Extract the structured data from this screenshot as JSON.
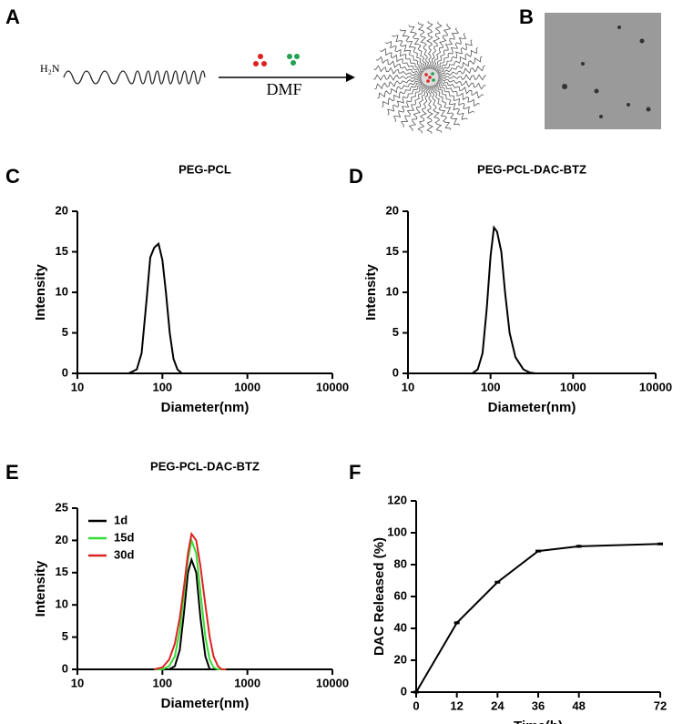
{
  "schematic": {
    "panel": "A",
    "amine": "H₂N",
    "solvent": "DMF"
  },
  "micrograph": {
    "panel": "B"
  },
  "chart_data": [
    {
      "type": "line",
      "panel": "C",
      "title": "PEG-PCL",
      "xlabel": "Diameter(nm)",
      "ylabel": "Intensity",
      "xscale": "log",
      "xlim": [
        10,
        10000
      ],
      "xticks": [
        10,
        100,
        1000,
        10000
      ],
      "ylim": [
        0,
        20
      ],
      "yticks": [
        0,
        5,
        10,
        15,
        20
      ],
      "color": "#000000",
      "x": [
        40,
        50,
        57,
        65,
        72,
        80,
        90,
        100,
        110,
        122,
        135,
        150,
        170
      ],
      "values": [
        0,
        0.5,
        2.5,
        9,
        14.3,
        15.5,
        16,
        14,
        10,
        5,
        1.8,
        0.5,
        0
      ]
    },
    {
      "type": "line",
      "panel": "D",
      "title": "PEG-PCL-DAC-BTZ",
      "xlabel": "Diameter(nm)",
      "ylabel": "Intensity",
      "xscale": "log",
      "xlim": [
        10,
        10000
      ],
      "xticks": [
        10,
        100,
        1000,
        10000
      ],
      "ylim": [
        0,
        20
      ],
      "yticks": [
        0,
        5,
        10,
        15,
        20
      ],
      "color": "#000000",
      "x": [
        60,
        70,
        80,
        90,
        100,
        110,
        120,
        135,
        150,
        170,
        200,
        250,
        300,
        350
      ],
      "values": [
        0,
        0.5,
        2.5,
        8,
        14.5,
        18,
        17.5,
        15,
        10,
        5,
        2,
        0.5,
        0.1,
        0
      ]
    },
    {
      "type": "multiline",
      "panel": "E",
      "title": "PEG-PCL-DAC-BTZ",
      "xlabel": "Diameter(nm)",
      "ylabel": "Intensity",
      "xscale": "log",
      "xlim": [
        10,
        10000
      ],
      "xticks": [
        10,
        100,
        1000,
        10000
      ],
      "ylim": [
        0,
        25
      ],
      "yticks": [
        0,
        5,
        10,
        15,
        20,
        25
      ],
      "legend": "upper left",
      "x": [
        80,
        100,
        120,
        140,
        160,
        180,
        200,
        220,
        250,
        280,
        320,
        360,
        400,
        450,
        500,
        560
      ],
      "series": [
        {
          "name": "1d",
          "color": "#000000",
          "values": [
            0,
            0,
            0,
            0.5,
            3,
            9,
            15,
            17,
            15,
            8,
            2,
            0,
            0,
            0,
            0,
            0
          ]
        },
        {
          "name": "15d",
          "color": "#33dd33",
          "values": [
            0,
            0,
            0.5,
            2,
            6,
            12,
            17,
            20,
            18,
            12,
            5,
            1.5,
            0.3,
            0,
            0,
            0
          ]
        },
        {
          "name": "30d",
          "color": "#dd2222",
          "values": [
            0,
            0.3,
            1.5,
            4,
            8,
            13,
            18,
            21,
            20,
            16,
            10,
            5,
            2,
            0.5,
            0,
            0
          ]
        }
      ]
    },
    {
      "type": "errorline",
      "panel": "F",
      "xlabel": "Time(h)",
      "ylabel": "DAC Released (%)",
      "xlim": [
        0,
        72
      ],
      "xticks": [
        0,
        12,
        24,
        36,
        48,
        72
      ],
      "ylim": [
        0,
        120
      ],
      "yticks": [
        0,
        20,
        40,
        60,
        80,
        100,
        120
      ],
      "color": "#000000",
      "x": [
        0,
        12,
        24,
        36,
        48,
        72
      ],
      "values": [
        0,
        43.5,
        69,
        88.5,
        91.5,
        93
      ],
      "errors": [
        0,
        1,
        0.8,
        0.8,
        1,
        0.7
      ]
    }
  ]
}
